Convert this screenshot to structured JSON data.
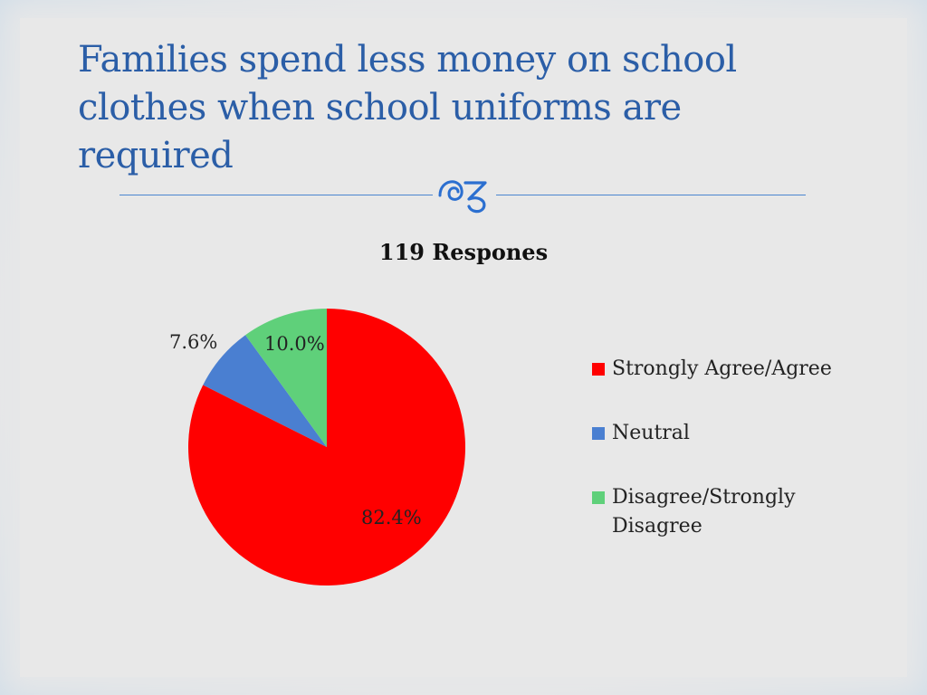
{
  "slide": {
    "title": "Families spend less money on school clothes when school uniforms are required",
    "ornament_icon": "flourish-icon"
  },
  "chart_data": {
    "type": "pie",
    "title": "119 Respones",
    "categories": [
      "Strongly Agree/Agree",
      "Neutral",
      "Disagree/Strongly Disagree"
    ],
    "values": [
      82.4,
      7.6,
      10.0
    ],
    "labels": [
      "82.4%",
      "7.6%",
      "10.0%"
    ],
    "colors": [
      "#ff0000",
      "#4a7fd1",
      "#5fd07a"
    ],
    "legend_position": "right"
  }
}
